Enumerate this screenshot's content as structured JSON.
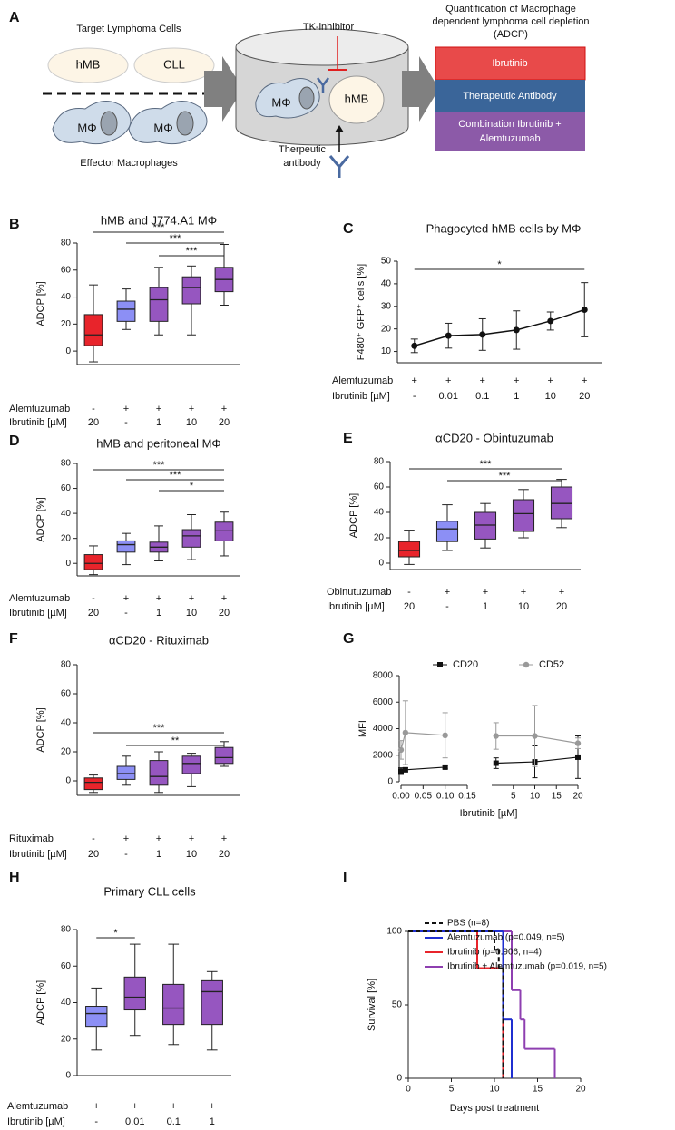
{
  "panel_a": {
    "panel_label": "A",
    "targets_title": "Target Lymphoma Cells",
    "target_cells": [
      "hMB",
      "CLL"
    ],
    "macrophage_labels": [
      "MΦ",
      "MΦ"
    ],
    "effectors_title": "Effector Macrophages",
    "inhibitor": "TK-inhibitor",
    "dish_macrophage": "MΦ",
    "dish_target": "hMB",
    "antibody_lines": [
      "Therpeutic",
      "antibody"
    ],
    "quantification_lines": [
      "Quantification of Macrophage",
      "dependent lymphoma cell depletion",
      "(ADCP)"
    ],
    "conditions": [
      "Ibrutinib",
      "Therapeutic Antibody"
    ],
    "combination_lines": [
      "Combination Ibrutinib +",
      "Alemtuzumab"
    ]
  },
  "chart_data": [
    {
      "panel_label": "B",
      "type": "box",
      "title": "hMB and J774.A1  MΦ",
      "y_label": "ADCP [%]",
      "ylim": [
        -10,
        80
      ],
      "yticks": [
        0,
        20,
        40,
        60,
        80
      ],
      "boxes": [
        {
          "min": -8,
          "q1": 4,
          "median": 12,
          "q3": 27,
          "max": 49
        },
        {
          "min": 16,
          "q1": 22,
          "median": 31,
          "q3": 37,
          "max": 46
        },
        {
          "min": 12,
          "q1": 22,
          "median": 38,
          "q3": 47,
          "max": 62
        },
        {
          "min": 12,
          "q1": 35,
          "median": 47,
          "q3": 55,
          "max": 63
        },
        {
          "min": 34,
          "q1": 44,
          "median": 53,
          "q3": 62,
          "max": 79
        }
      ],
      "box_colors": [
        "#e8242b",
        "#8c8ff5",
        "#9656c0",
        "#9656c0",
        "#9656c0"
      ],
      "rows": [
        {
          "label": "Alemtuzumab",
          "values": [
            "-",
            "+",
            "+",
            "+",
            "+"
          ]
        },
        {
          "label": "Ibrutinib [µM]",
          "values": [
            "20",
            "-",
            "1",
            "10",
            "20"
          ]
        }
      ],
      "significance": [
        "***",
        "***",
        "***"
      ]
    },
    {
      "panel_label": "C",
      "type": "line",
      "title": "Phagocyted hMB cells by MΦ",
      "y_label": "F480⁺ GFP⁺ cells [%]",
      "ylim": [
        5,
        50
      ],
      "yticks": [
        10,
        20,
        30,
        40,
        50
      ],
      "values": [
        12.5,
        17,
        17.5,
        19.5,
        23.5,
        28.5
      ],
      "errors": [
        3,
        5.5,
        7,
        8.5,
        4,
        12
      ],
      "color": "#111111",
      "rows": [
        {
          "label": "Alemtuzumab",
          "values": [
            "+",
            "+",
            "+",
            "+",
            "+",
            "+"
          ]
        },
        {
          "label": "Ibrutinib [µM]",
          "values": [
            "-",
            "0.01",
            "0.1",
            "1",
            "10",
            "20"
          ]
        }
      ],
      "significance": [
        "*"
      ]
    },
    {
      "panel_label": "D",
      "type": "box",
      "title": "hMB and peritoneal MΦ",
      "y_label": "ADCP [%]",
      "ylim": [
        -10,
        80
      ],
      "yticks": [
        0,
        20,
        40,
        60,
        80
      ],
      "boxes": [
        {
          "min": -9,
          "q1": -5,
          "median": 0,
          "q3": 7,
          "max": 14
        },
        {
          "min": -1,
          "q1": 9,
          "median": 15,
          "q3": 18,
          "max": 24
        },
        {
          "min": 2,
          "q1": 9,
          "median": 13,
          "q3": 17,
          "max": 30
        },
        {
          "min": 3,
          "q1": 13,
          "median": 22,
          "q3": 27,
          "max": 39
        },
        {
          "min": 6,
          "q1": 18,
          "median": 26,
          "q3": 33,
          "max": 41
        }
      ],
      "box_colors": [
        "#e8242b",
        "#8c8ff5",
        "#9656c0",
        "#9656c0",
        "#9656c0"
      ],
      "rows": [
        {
          "label": "Alemtuzumab",
          "values": [
            "-",
            "+",
            "+",
            "+",
            "+"
          ]
        },
        {
          "label": "Ibrutinib [µM]",
          "values": [
            "20",
            "-",
            "1",
            "10",
            "20"
          ]
        }
      ],
      "significance": [
        "***",
        "***",
        "*"
      ]
    },
    {
      "panel_label": "E",
      "type": "box",
      "title": "αCD20 - Obintuzumab",
      "y_label": "ADCP [%]",
      "ylim": [
        -5,
        80
      ],
      "yticks": [
        0,
        20,
        40,
        60,
        80
      ],
      "boxes": [
        {
          "min": -1,
          "q1": 5,
          "median": 10,
          "q3": 17,
          "max": 26
        },
        {
          "min": 10,
          "q1": 17,
          "median": 27,
          "q3": 33,
          "max": 46
        },
        {
          "min": 12,
          "q1": 19,
          "median": 30,
          "q3": 40,
          "max": 47
        },
        {
          "min": 20,
          "q1": 25,
          "median": 39,
          "q3": 50,
          "max": 58
        },
        {
          "min": 28,
          "q1": 35,
          "median": 47,
          "q3": 60,
          "max": 66
        }
      ],
      "box_colors": [
        "#e8242b",
        "#8c8ff5",
        "#9656c0",
        "#9656c0",
        "#9656c0"
      ],
      "rows": [
        {
          "label": "Obinutuzumab",
          "values": [
            "-",
            "+",
            "+",
            "+",
            "+"
          ]
        },
        {
          "label": "Ibrutinib [µM]",
          "values": [
            "20",
            "-",
            "1",
            "10",
            "20"
          ]
        }
      ],
      "significance": [
        "***",
        "***"
      ]
    },
    {
      "panel_label": "F",
      "type": "box",
      "title": "αCD20 - Rituximab",
      "y_label": "ADCP [%]",
      "ylim": [
        -10,
        80
      ],
      "yticks": [
        0,
        20,
        40,
        60,
        80
      ],
      "boxes": [
        {
          "min": -8,
          "q1": -6,
          "median": -1,
          "q3": 2,
          "max": 4
        },
        {
          "min": -3,
          "q1": 1,
          "median": 5,
          "q3": 10,
          "max": 17
        },
        {
          "min": -8,
          "q1": -3,
          "median": 3,
          "q3": 14,
          "max": 20
        },
        {
          "min": -4,
          "q1": 5,
          "median": 12,
          "q3": 17,
          "max": 19
        },
        {
          "min": 10,
          "q1": 12,
          "median": 16,
          "q3": 23,
          "max": 27
        }
      ],
      "box_colors": [
        "#e8242b",
        "#8c8ff5",
        "#9656c0",
        "#9656c0",
        "#9656c0"
      ],
      "rows": [
        {
          "label": "Rituximab",
          "values": [
            "-",
            "+",
            "+",
            "+",
            "+"
          ]
        },
        {
          "label": "Ibrutinib [µM]",
          "values": [
            "20",
            "-",
            "1",
            "10",
            "20"
          ]
        }
      ],
      "significance": [
        "***",
        "**"
      ]
    },
    {
      "panel_label": "G",
      "type": "errorline",
      "y_label": "MFI",
      "x_label": "Ibrutinib [µM]",
      "ylim": [
        0,
        8000
      ],
      "yticks": [
        0,
        2000,
        4000,
        6000,
        8000
      ],
      "x": [
        0,
        0.01,
        0.1,
        1,
        10,
        20
      ],
      "x_segments": [
        {
          "xlim": [
            0,
            0.15
          ],
          "xticks": [
            {
              "value": 0,
              "label": "0.00"
            },
            {
              "value": 0.05,
              "label": "0.05"
            },
            {
              "value": 0.1,
              "label": "0.10"
            },
            {
              "value": 0.15,
              "label": "0.15"
            }
          ]
        },
        {
          "xlim": [
            0,
            20
          ],
          "xticks": [
            5,
            10,
            15,
            20
          ]
        }
      ],
      "series": [
        {
          "name": "CD20",
          "color": "#111111",
          "marker": "square",
          "values": [
            800,
            900,
            1100,
            1400,
            1500,
            1850
          ],
          "errors": [
            250,
            150,
            100,
            400,
            1200,
            1600
          ]
        },
        {
          "name": "CD52",
          "color": "#999999",
          "marker": "circle",
          "values": [
            2400,
            3700,
            3500,
            3450,
            3450,
            2900
          ],
          "errors": [
            700,
            2400,
            1700,
            1000,
            2300,
            400
          ]
        }
      ]
    },
    {
      "panel_label": "H",
      "type": "box",
      "title": "Primary CLL cells",
      "y_label": "ADCP [%]",
      "ylim": [
        0,
        80
      ],
      "yticks": [
        0,
        20,
        40,
        60,
        80
      ],
      "boxes": [
        {
          "min": 14,
          "q1": 27,
          "median": 34,
          "q3": 38,
          "max": 48
        },
        {
          "min": 22,
          "q1": 36,
          "median": 43,
          "q3": 54,
          "max": 72
        },
        {
          "min": 17,
          "q1": 28,
          "median": 37,
          "q3": 50,
          "max": 72
        },
        {
          "min": 14,
          "q1": 28,
          "median": 46,
          "q3": 52,
          "max": 57
        }
      ],
      "box_colors": [
        "#8c8ff5",
        "#9656c0",
        "#9656c0",
        "#9656c0"
      ],
      "rows": [
        {
          "label": "Alemtuzumab",
          "values": [
            "+",
            "+",
            "+",
            "+"
          ]
        },
        {
          "label": "Ibrutinib [µM]",
          "values": [
            "-",
            "0.01",
            "0.1",
            "1"
          ]
        }
      ],
      "significance": [
        "*"
      ]
    },
    {
      "panel_label": "I",
      "type": "step",
      "y_label": "Survival [%]",
      "x_label": "Days post treatment",
      "xlim": [
        0,
        20
      ],
      "xticks": [
        0,
        5,
        10,
        15,
        20
      ],
      "ylim": [
        0,
        100
      ],
      "yticks": [
        0,
        50,
        100
      ],
      "series": [
        {
          "name": "PBS (n=8)",
          "color": "#111111",
          "dashed": true,
          "x": [
            0,
            10,
            10.5,
            11
          ],
          "values": [
            100,
            87.5,
            75,
            0
          ]
        },
        {
          "name": "Alemtuzumab (p=0.049, n=5)",
          "color": "#1f2fd0",
          "dashed": false,
          "x": [
            0,
            11,
            12
          ],
          "values": [
            100,
            40,
            0
          ]
        },
        {
          "name": "Ibrutinib (p=0.906, n=4)",
          "color": "#e8242b",
          "dashed": false,
          "x": [
            0,
            8,
            11
          ],
          "values": [
            100,
            75,
            0
          ]
        },
        {
          "name": "Ibrutinib + Alemtuzumab (p=0.019, n=5)",
          "color": "#8e3fb0",
          "dashed": false,
          "x": [
            0,
            12,
            13,
            13.5,
            17
          ],
          "values": [
            100,
            60,
            40,
            20,
            0
          ]
        }
      ]
    }
  ]
}
